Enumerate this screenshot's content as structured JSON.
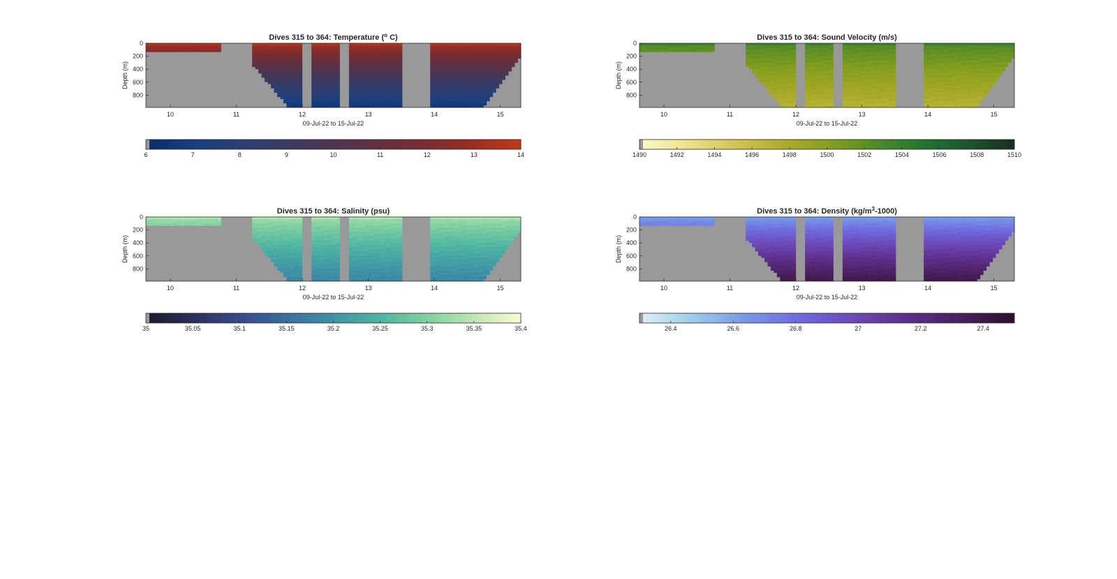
{
  "chart_data": [
    {
      "type": "heatmap",
      "title": "Dives 315 to 364: Temperature (",
      "title_sup": "o",
      "title_end": " C)",
      "xlabel": "09-Jul-22 to 15-Jul-22",
      "ylabel": "Depth (m)",
      "x_ticks": [
        "10",
        "11",
        "12",
        "13",
        "14",
        "15"
      ],
      "y_ticks": [
        "0",
        "200",
        "400",
        "600",
        "800"
      ],
      "xlim": [
        9.63,
        15.31
      ],
      "ylim": [
        0,
        990
      ],
      "colorbar": {
        "min": 6,
        "max": 14,
        "ticks": [
          "6",
          "7",
          "8",
          "9",
          "10",
          "11",
          "12",
          "13",
          "14"
        ],
        "colors": [
          "#0b2d6e",
          "#173f7f",
          "#2b3f72",
          "#3b3a62",
          "#4d3550",
          "#633040",
          "#7b2c30",
          "#9a2e22",
          "#c0381a"
        ]
      },
      "surface_value": 13.5,
      "deep_value": 6.5
    },
    {
      "type": "heatmap",
      "title": "Dives 315 to 364: Sound Velocity (m/s)",
      "title_sup": "",
      "title_end": "",
      "xlabel": "09-Jul-22 to 15-Jul-22",
      "ylabel": "Depth (m)",
      "x_ticks": [
        "10",
        "11",
        "12",
        "13",
        "14",
        "15"
      ],
      "y_ticks": [
        "0",
        "200",
        "400",
        "600",
        "800"
      ],
      "xlim": [
        9.63,
        15.31
      ],
      "ylim": [
        0,
        990
      ],
      "colorbar": {
        "min": 1490,
        "max": 1510,
        "ticks": [
          "1490",
          "1492",
          "1494",
          "1496",
          "1498",
          "1500",
          "1502",
          "1504",
          "1506",
          "1508",
          "1510"
        ],
        "colors": [
          "#fbf7c9",
          "#f0e79a",
          "#ded06b",
          "#c7bb46",
          "#a9a92a",
          "#8aa01f",
          "#5f9024",
          "#33802e",
          "#1f6a33",
          "#1c4f2c",
          "#1a2e1e"
        ]
      },
      "surface_value": 1503,
      "deep_value": 1497
    },
    {
      "type": "heatmap",
      "title": "Dives 315 to 364: Salinity (psu)",
      "title_sup": "",
      "title_end": "",
      "xlabel": "09-Jul-22 to 15-Jul-22",
      "ylabel": "Depth (m)",
      "x_ticks": [
        "10",
        "11",
        "12",
        "13",
        "14",
        "15"
      ],
      "y_ticks": [
        "0",
        "200",
        "400",
        "600",
        "800"
      ],
      "xlim": [
        9.63,
        15.31
      ],
      "ylim": [
        0,
        990
      ],
      "colorbar": {
        "min": 35,
        "max": 35.4,
        "ticks": [
          "35",
          "35.05",
          "35.1",
          "35.15",
          "35.2",
          "35.25",
          "35.3",
          "35.35",
          "35.4"
        ],
        "colors": [
          "#1d1a2e",
          "#2c2f5c",
          "#374a8a",
          "#3b6fa0",
          "#3f93a6",
          "#4db4a2",
          "#7fd0a0",
          "#bde6b4",
          "#fcf9d4"
        ]
      },
      "surface_value": 35.33,
      "deep_value": 35.18
    },
    {
      "type": "heatmap",
      "title": "Dives 315 to 364: Density (kg/m",
      "title_sup": "3",
      "title_end": "-1000)",
      "xlabel": "09-Jul-22 to 15-Jul-22",
      "ylabel": "Depth (m)",
      "x_ticks": [
        "10",
        "11",
        "12",
        "13",
        "14",
        "15"
      ],
      "y_ticks": [
        "0",
        "200",
        "400",
        "600",
        "800"
      ],
      "xlim": [
        9.63,
        15.31
      ],
      "ylim": [
        0,
        990
      ],
      "colorbar": {
        "min": 26.3,
        "max": 27.5,
        "ticks": [
          "26.4",
          "26.6",
          "26.8",
          "27",
          "27.2",
          "27.4"
        ],
        "tick_values": [
          26.4,
          26.6,
          26.8,
          27.0,
          27.2,
          27.4
        ],
        "colors": [
          "#def0f2",
          "#9ccbea",
          "#7896e8",
          "#6f6ae0",
          "#6c49b8",
          "#5f2f8a",
          "#4a1e5e",
          "#2d0f30"
        ]
      },
      "surface_value": 26.6,
      "deep_value": 27.4
    }
  ]
}
